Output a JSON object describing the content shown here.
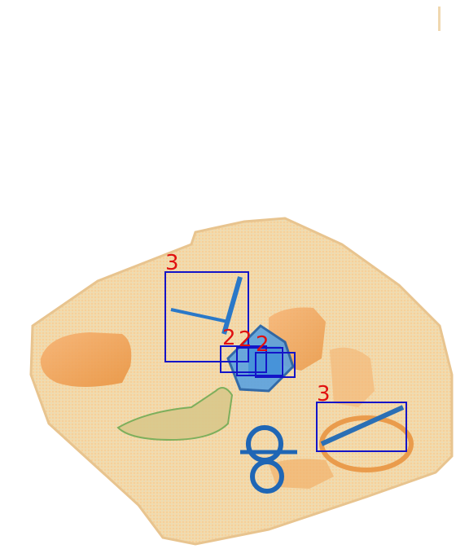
{
  "image": {
    "description_colors": {
      "case": "#f3cf98",
      "organic": "#f0a050",
      "metal": "#2a78c8",
      "green": "#7cb85a",
      "box_stroke": "#1414c8",
      "label_color": "#e01010"
    }
  },
  "detections": [
    {
      "label": "3"
    },
    {
      "label": "2"
    },
    {
      "label": "2"
    },
    {
      "label": "2"
    },
    {
      "label": "3"
    }
  ]
}
